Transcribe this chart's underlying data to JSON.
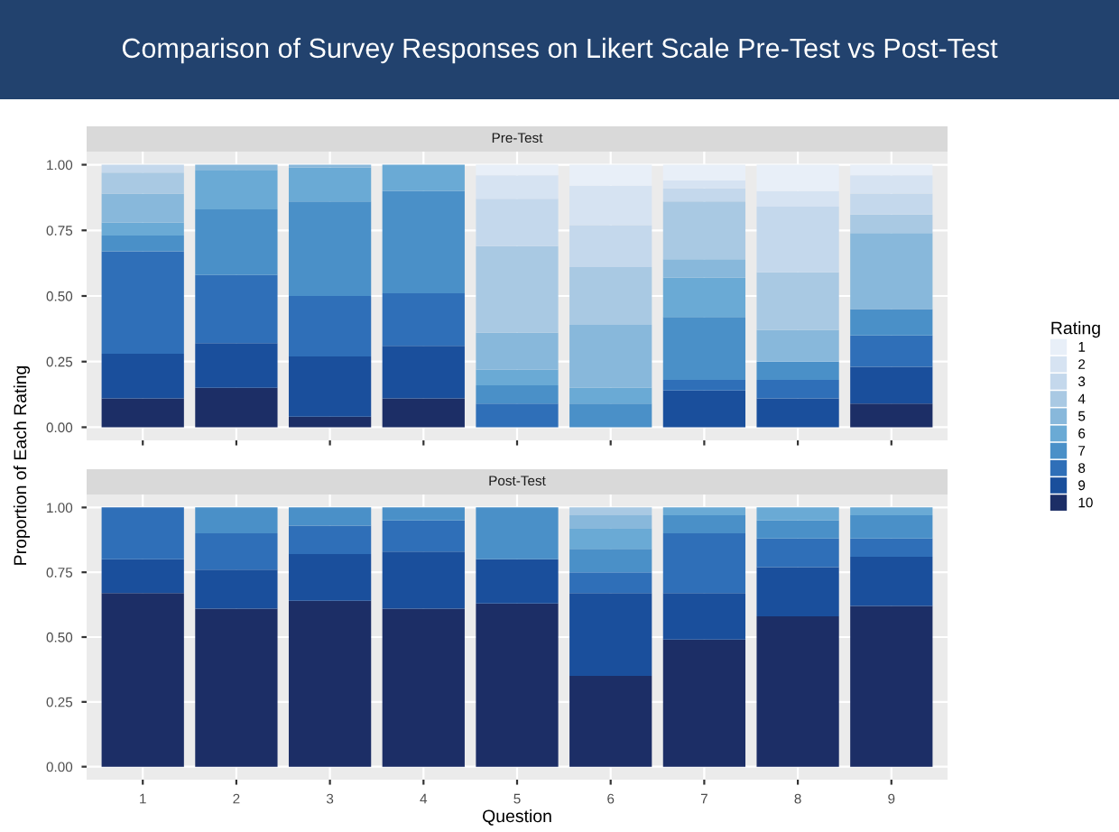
{
  "chart_data": [
    {
      "type": "bar",
      "title": "Comparison of Survey Responses on Likert Scale Pre-Test vs Post-Test",
      "subtitle": "Pre-Test",
      "ylabel": "Proportion of Each Rating",
      "legend_title": "Rating",
      "legend": "right",
      "stacked": true,
      "grid": true,
      "tick_labels": "y",
      "categories": [
        "1",
        "2",
        "3",
        "4",
        "5",
        "6",
        "7",
        "8",
        "9"
      ],
      "ylim": [
        -0.05,
        1.05
      ],
      "yticks": [
        {
          "value": 0,
          "label": "0.00"
        },
        {
          "value": 0.25,
          "label": "0.25"
        },
        {
          "value": 0.5,
          "label": "0.50"
        },
        {
          "value": 0.75,
          "label": "0.75"
        },
        {
          "value": 1,
          "label": "1.00"
        }
      ],
      "series": [
        {
          "name": "10",
          "color": "#1c2e66",
          "values": [
            0.11,
            0.15,
            0.04,
            0.11,
            0,
            0,
            0,
            0,
            0.09
          ]
        },
        {
          "name": "9",
          "color": "#1a4f9c",
          "values": [
            0.17,
            0.17,
            0.23,
            0.2,
            0,
            0,
            0.14,
            0.11,
            0.14
          ]
        },
        {
          "name": "8",
          "color": "#2f6fb8",
          "values": [
            0.39,
            0.26,
            0.23,
            0.2,
            0.09,
            0,
            0.04,
            0.07,
            0.12
          ]
        },
        {
          "name": "7",
          "color": "#4a90c8",
          "values": [
            0.06,
            0.25,
            0.36,
            0.39,
            0.07,
            0.09,
            0.24,
            0.07,
            0.1
          ]
        },
        {
          "name": "6",
          "color": "#6aaad5",
          "values": [
            0.05,
            0.15,
            0.13,
            0.1,
            0.06,
            0.06,
            0.15,
            0,
            0
          ]
        },
        {
          "name": "5",
          "color": "#88b8db",
          "values": [
            0.11,
            0.02,
            0.01,
            0,
            0.14,
            0.24,
            0.07,
            0.12,
            0.29
          ]
        },
        {
          "name": "4",
          "color": "#a9c9e3",
          "values": [
            0.08,
            0,
            0,
            0,
            0.33,
            0.22,
            0.22,
            0.22,
            0.07
          ]
        },
        {
          "name": "3",
          "color": "#c4d8ec",
          "values": [
            0.03,
            0,
            0,
            0,
            0.18,
            0.16,
            0.05,
            0.25,
            0.08
          ]
        },
        {
          "name": "2",
          "color": "#d6e3f2",
          "values": [
            0,
            0,
            0,
            0,
            0.09,
            0.15,
            0.03,
            0.06,
            0.07
          ]
        },
        {
          "name": "1",
          "color": "#e8eff8",
          "values": [
            0,
            0,
            0,
            0,
            0.04,
            0.08,
            0.06,
            0.1,
            0.04
          ]
        }
      ]
    },
    {
      "type": "bar",
      "subtitle": "Post-Test",
      "xlabel": "Question",
      "stacked": true,
      "grid": true,
      "categories": [
        "1",
        "2",
        "3",
        "4",
        "5",
        "6",
        "7",
        "8",
        "9"
      ],
      "ylim": [
        -0.05,
        1.05
      ],
      "yticks": [
        {
          "value": 0,
          "label": "0.00"
        },
        {
          "value": 0.25,
          "label": "0.25"
        },
        {
          "value": 0.5,
          "label": "0.50"
        },
        {
          "value": 0.75,
          "label": "0.75"
        },
        {
          "value": 1,
          "label": "1.00"
        }
      ],
      "series": [
        {
          "color": "#1c2e66",
          "values": [
            0.67,
            0.61,
            0.64,
            0.61,
            0.63,
            0.35,
            0.49,
            0.58,
            0.62
          ]
        },
        {
          "color": "#1a4f9c",
          "values": [
            0.13,
            0.15,
            0.18,
            0.22,
            0.17,
            0.32,
            0.18,
            0.19,
            0.19
          ]
        },
        {
          "color": "#2f6fb8",
          "values": [
            0.2,
            0.14,
            0.11,
            0.12,
            0,
            0.08,
            0.23,
            0.11,
            0.07
          ]
        },
        {
          "color": "#4a90c8",
          "values": [
            0,
            0.1,
            0.07,
            0.05,
            0.2,
            0.09,
            0.07,
            0.07,
            0.09
          ]
        },
        {
          "color": "#6aaad5",
          "values": [
            0,
            0,
            0,
            0,
            0,
            0.08,
            0.03,
            0.05,
            0.03
          ]
        },
        {
          "color": "#88b8db",
          "values": [
            0,
            0,
            0,
            0,
            0,
            0.05,
            0,
            0,
            0
          ]
        },
        {
          "color": "#a9c9e3",
          "values": [
            0,
            0,
            0,
            0,
            0,
            0.03,
            0,
            0,
            0
          ]
        }
      ]
    }
  ]
}
